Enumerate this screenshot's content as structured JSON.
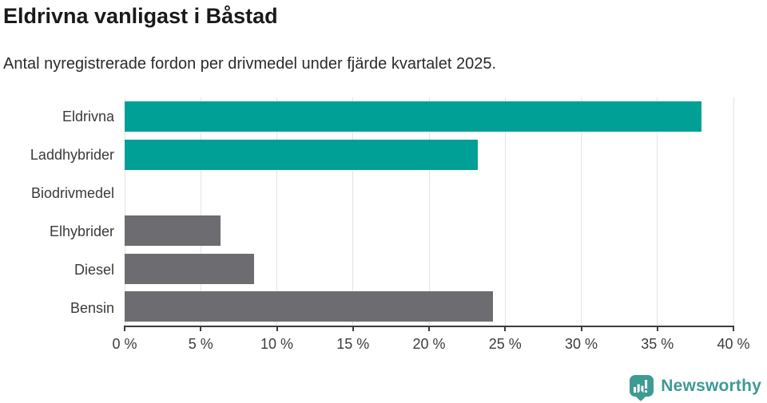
{
  "chart": {
    "title": "Eldrivna vanligast i Båstad",
    "subtitle": "Antal nyregistrerade fordon per drivmedel under fjärde kvartalet 2025."
  },
  "chart_data": {
    "type": "bar",
    "orientation": "horizontal",
    "title": "Eldrivna vanligast i Båstad",
    "subtitle": "Antal nyregistrerade fordon per drivmedel under fjärde kvartalet 2025.",
    "categories": [
      "Eldrivna",
      "Laddhybrider",
      "Biodrivmedel",
      "Elhybrider",
      "Diesel",
      "Bensin"
    ],
    "values": [
      37.9,
      23.2,
      0,
      6.3,
      8.5,
      24.2
    ],
    "unit": "%",
    "xlim": [
      0,
      40
    ],
    "x_ticks": [
      0,
      5,
      10,
      15,
      20,
      25,
      30,
      35,
      40
    ],
    "x_tick_labels": [
      "0 %",
      "5 %",
      "10 %",
      "15 %",
      "20 %",
      "25 %",
      "30 %",
      "35 %",
      "40 %"
    ],
    "bar_colors": [
      "#00a096",
      "#00a096",
      "#00a096",
      "#6c6c71",
      "#6c6c71",
      "#6c6c71"
    ],
    "grid": "vertical",
    "legend": "none",
    "colors": {
      "highlight": "#00a096",
      "neutral": "#6c6c71",
      "gridline": "#e3e3e3",
      "axis": "#3c3c3c",
      "text": "#3a3a3a"
    }
  },
  "footer": {
    "brand": "Newsworthy",
    "brand_color": "#3d9b94"
  }
}
